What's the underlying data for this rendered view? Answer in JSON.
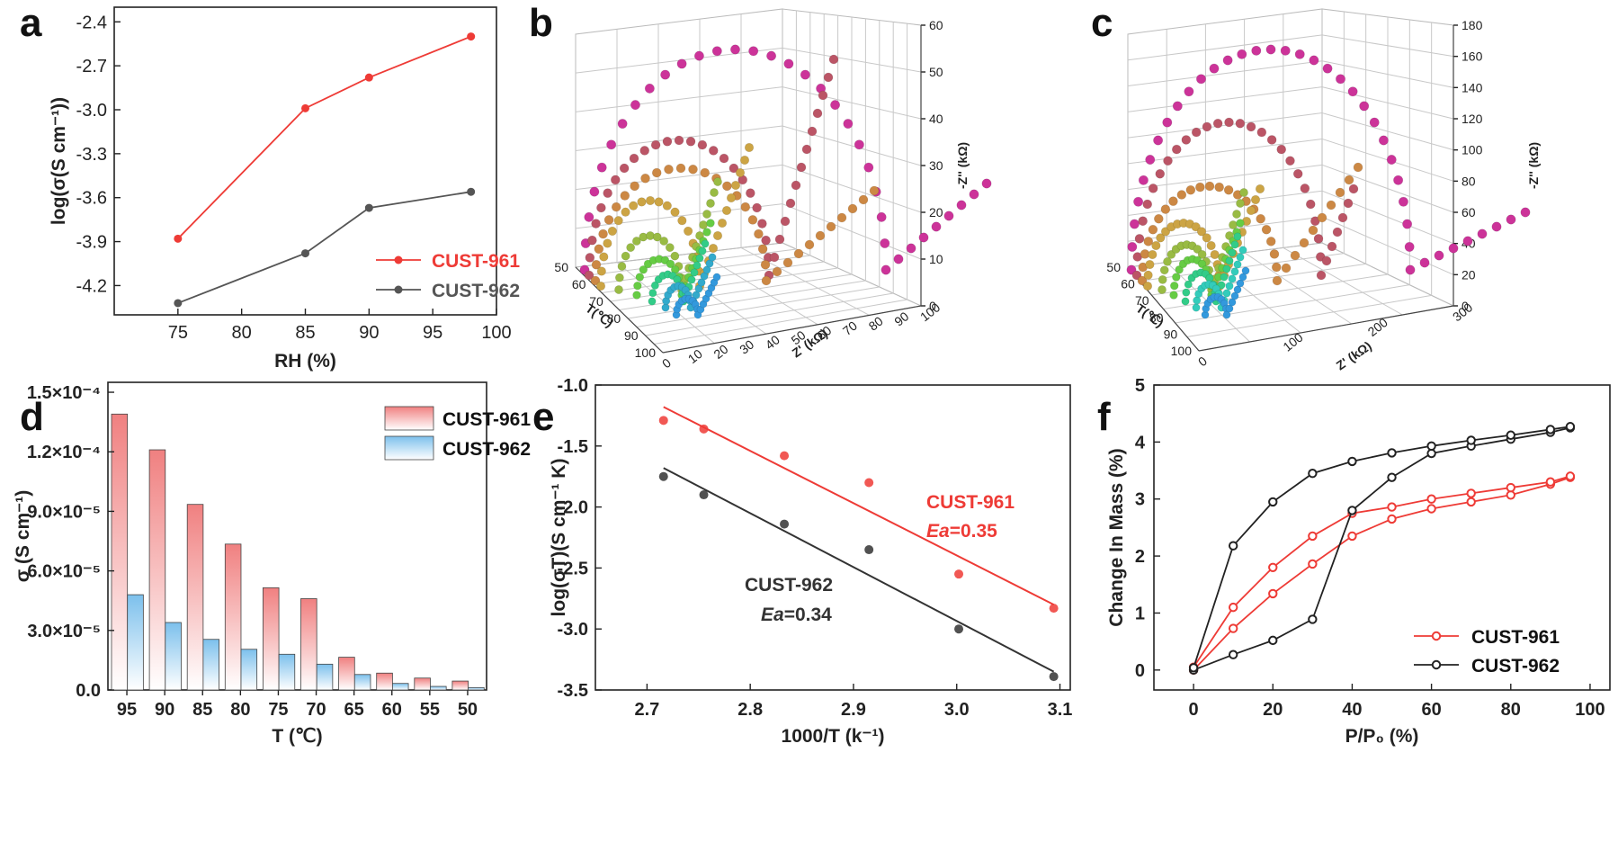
{
  "panels": {
    "a": "a",
    "b": "b",
    "c": "c",
    "d": "d",
    "e": "e",
    "f": "f"
  },
  "chart_data": [
    {
      "id": "a",
      "type": "line",
      "xlabel": "RH (%)",
      "ylabel": "log(σ(S cm⁻¹))",
      "xlim": [
        70,
        100
      ],
      "ylim": [
        -4.4,
        -2.3
      ],
      "xticks": [
        75,
        80,
        85,
        90,
        95,
        100
      ],
      "yticks": [
        -4.2,
        -3.9,
        -3.6,
        -3.3,
        -3.0,
        -2.7,
        -2.4
      ],
      "legend": "bottom-right",
      "series": [
        {
          "name": "CUST-961",
          "color": "#ee3b36",
          "x": [
            75,
            85,
            90,
            98
          ],
          "y": [
            -3.88,
            -2.99,
            -2.78,
            -2.5
          ]
        },
        {
          "name": "CUST-962",
          "color": "#555555",
          "x": [
            75,
            85,
            90,
            98
          ],
          "y": [
            -4.32,
            -3.98,
            -3.67,
            -3.56
          ]
        }
      ]
    },
    {
      "id": "b",
      "type": "scatter",
      "note": "3D Nyquist plots",
      "xlabel": "Z' (kΩ)",
      "ylabel": "T(℃)",
      "zlabel": "-Z'' (kΩ)",
      "x_ticks": [
        "0",
        "10",
        "20",
        "30",
        "40",
        "50",
        "60",
        "70",
        "80",
        "90",
        "100"
      ],
      "y_ticks": [
        "50",
        "60",
        "70",
        "80",
        "90",
        "100"
      ],
      "z_ticks": [
        "0",
        "10",
        "20",
        "30",
        "40",
        "50",
        "60"
      ],
      "x_range": [
        0,
        100
      ],
      "z_range": [
        0,
        60
      ]
    },
    {
      "id": "c",
      "type": "scatter",
      "note": "3D Nyquist plots",
      "xlabel": "Z' (kΩ)",
      "ylabel": "T(℃)",
      "zlabel": "-Z'' (kΩ)",
      "x_ticks": [
        "0",
        "100",
        "200",
        "300"
      ],
      "y_ticks": [
        "50",
        "60",
        "70",
        "80",
        "90",
        "100"
      ],
      "z_ticks": [
        "0",
        "20",
        "40",
        "60",
        "80",
        "100",
        "120",
        "140",
        "160",
        "180"
      ],
      "x_range": [
        0,
        300
      ],
      "z_range": [
        0,
        180
      ]
    },
    {
      "id": "d",
      "type": "bar",
      "xlabel": "T (℃)",
      "ylabel": "σ (S cm⁻¹)",
      "ylim": [
        0,
        0.000155
      ],
      "ytick_values": [
        0,
        3e-05,
        6e-05,
        9e-05,
        0.00012,
        0.00015
      ],
      "ytick_labels": [
        "0.0",
        "3.0×10⁻⁵",
        "6.0×10⁻⁵",
        "9.0×10⁻⁵",
        "1.2×10⁻⁴",
        "1.5×10⁻⁴"
      ],
      "categories": [
        "95",
        "90",
        "85",
        "80",
        "75",
        "70",
        "65",
        "60",
        "55",
        "50"
      ],
      "legend": "top-right",
      "series": [
        {
          "name": "CUST-961",
          "color": "#f08080",
          "values": [
            0.000139,
            0.000121,
            9.35e-05,
            7.35e-05,
            5.15e-05,
            4.6e-05,
            1.65e-05,
            8.5e-06,
            6e-06,
            4.5e-06
          ]
        },
        {
          "name": "CUST-962",
          "color": "#7cc0ec",
          "values": [
            4.8e-05,
            3.4e-05,
            2.55e-05,
            2.05e-05,
            1.8e-05,
            1.3e-05,
            7.8e-06,
            3.3e-06,
            1.8e-06,
            1.2e-06
          ]
        }
      ]
    },
    {
      "id": "e",
      "type": "scatter",
      "xlabel": "1000/T (k⁻¹)",
      "ylabel": "log(σT)(S cm⁻¹ K)",
      "xlim": [
        2.65,
        3.11
      ],
      "ylim": [
        -3.5,
        -1.0
      ],
      "xticks": [
        2.7,
        2.8,
        2.9,
        3.0,
        3.1
      ],
      "yticks": [
        -3.5,
        -3.0,
        -2.5,
        -2.0,
        -1.5,
        -1.0
      ],
      "series": [
        {
          "name": "CUST-961",
          "color": "#ee3b36",
          "ea_prefix": "Ea",
          "ea_value": "=0.35",
          "x": [
            2.716,
            2.755,
            2.833,
            2.915,
            3.002,
            3.094
          ],
          "y": [
            -1.29,
            -1.36,
            -1.58,
            -1.8,
            -2.55,
            -2.83
          ],
          "fit": {
            "x": [
              2.716,
              3.094
            ],
            "y": [
              -1.18,
              -2.8
            ]
          }
        },
        {
          "name": "CUST-962",
          "color": "#333333",
          "ea_prefix": "Ea",
          "ea_value": "=0.34",
          "x": [
            2.716,
            2.755,
            2.833,
            2.915,
            3.002,
            3.094
          ],
          "y": [
            -1.75,
            -1.9,
            -2.14,
            -2.35,
            -3.0,
            -3.39
          ],
          "fit": {
            "x": [
              2.716,
              3.094
            ],
            "y": [
              -1.68,
              -3.35
            ]
          }
        }
      ]
    },
    {
      "id": "f",
      "type": "line",
      "xlabel": "P/P₀ (%)",
      "ylabel": "Change In Mass (%)",
      "xlim": [
        -10,
        105
      ],
      "ylim": [
        -0.35,
        5
      ],
      "xticks": [
        0,
        20,
        40,
        60,
        80,
        100
      ],
      "yticks": [
        0,
        1,
        2,
        3,
        4,
        5
      ],
      "legend": "bottom-right",
      "series": [
        {
          "name": "CUST-961",
          "color": "#ee3b36",
          "adsorption": {
            "x": [
              0,
              10,
              20,
              30,
              40,
              50,
              60,
              70,
              80,
              90,
              95
            ],
            "y": [
              0,
              0.73,
              1.34,
              1.86,
              2.35,
              2.65,
              2.83,
              2.95,
              3.07,
              3.26,
              3.38
            ]
          },
          "desorption": {
            "x": [
              95,
              90,
              80,
              70,
              60,
              50,
              40,
              30,
              20,
              10,
              0
            ],
            "y": [
              3.4,
              3.3,
              3.2,
              3.1,
              3.0,
              2.86,
              2.75,
              2.35,
              1.8,
              1.1,
              0.05
            ]
          }
        },
        {
          "name": "CUST-962",
          "color": "#222222",
          "adsorption": {
            "x": [
              0,
              10,
              20,
              30,
              40,
              50,
              60,
              70,
              80,
              90,
              95
            ],
            "y": [
              0,
              0.27,
              0.52,
              0.89,
              2.8,
              3.38,
              3.8,
              3.93,
              4.05,
              4.17,
              4.25
            ]
          },
          "desorption": {
            "x": [
              95,
              90,
              80,
              70,
              60,
              50,
              40,
              30,
              20,
              10,
              0
            ],
            "y": [
              4.27,
              4.22,
              4.12,
              4.03,
              3.93,
              3.81,
              3.66,
              3.45,
              2.95,
              2.18,
              0.04
            ]
          }
        }
      ]
    }
  ]
}
